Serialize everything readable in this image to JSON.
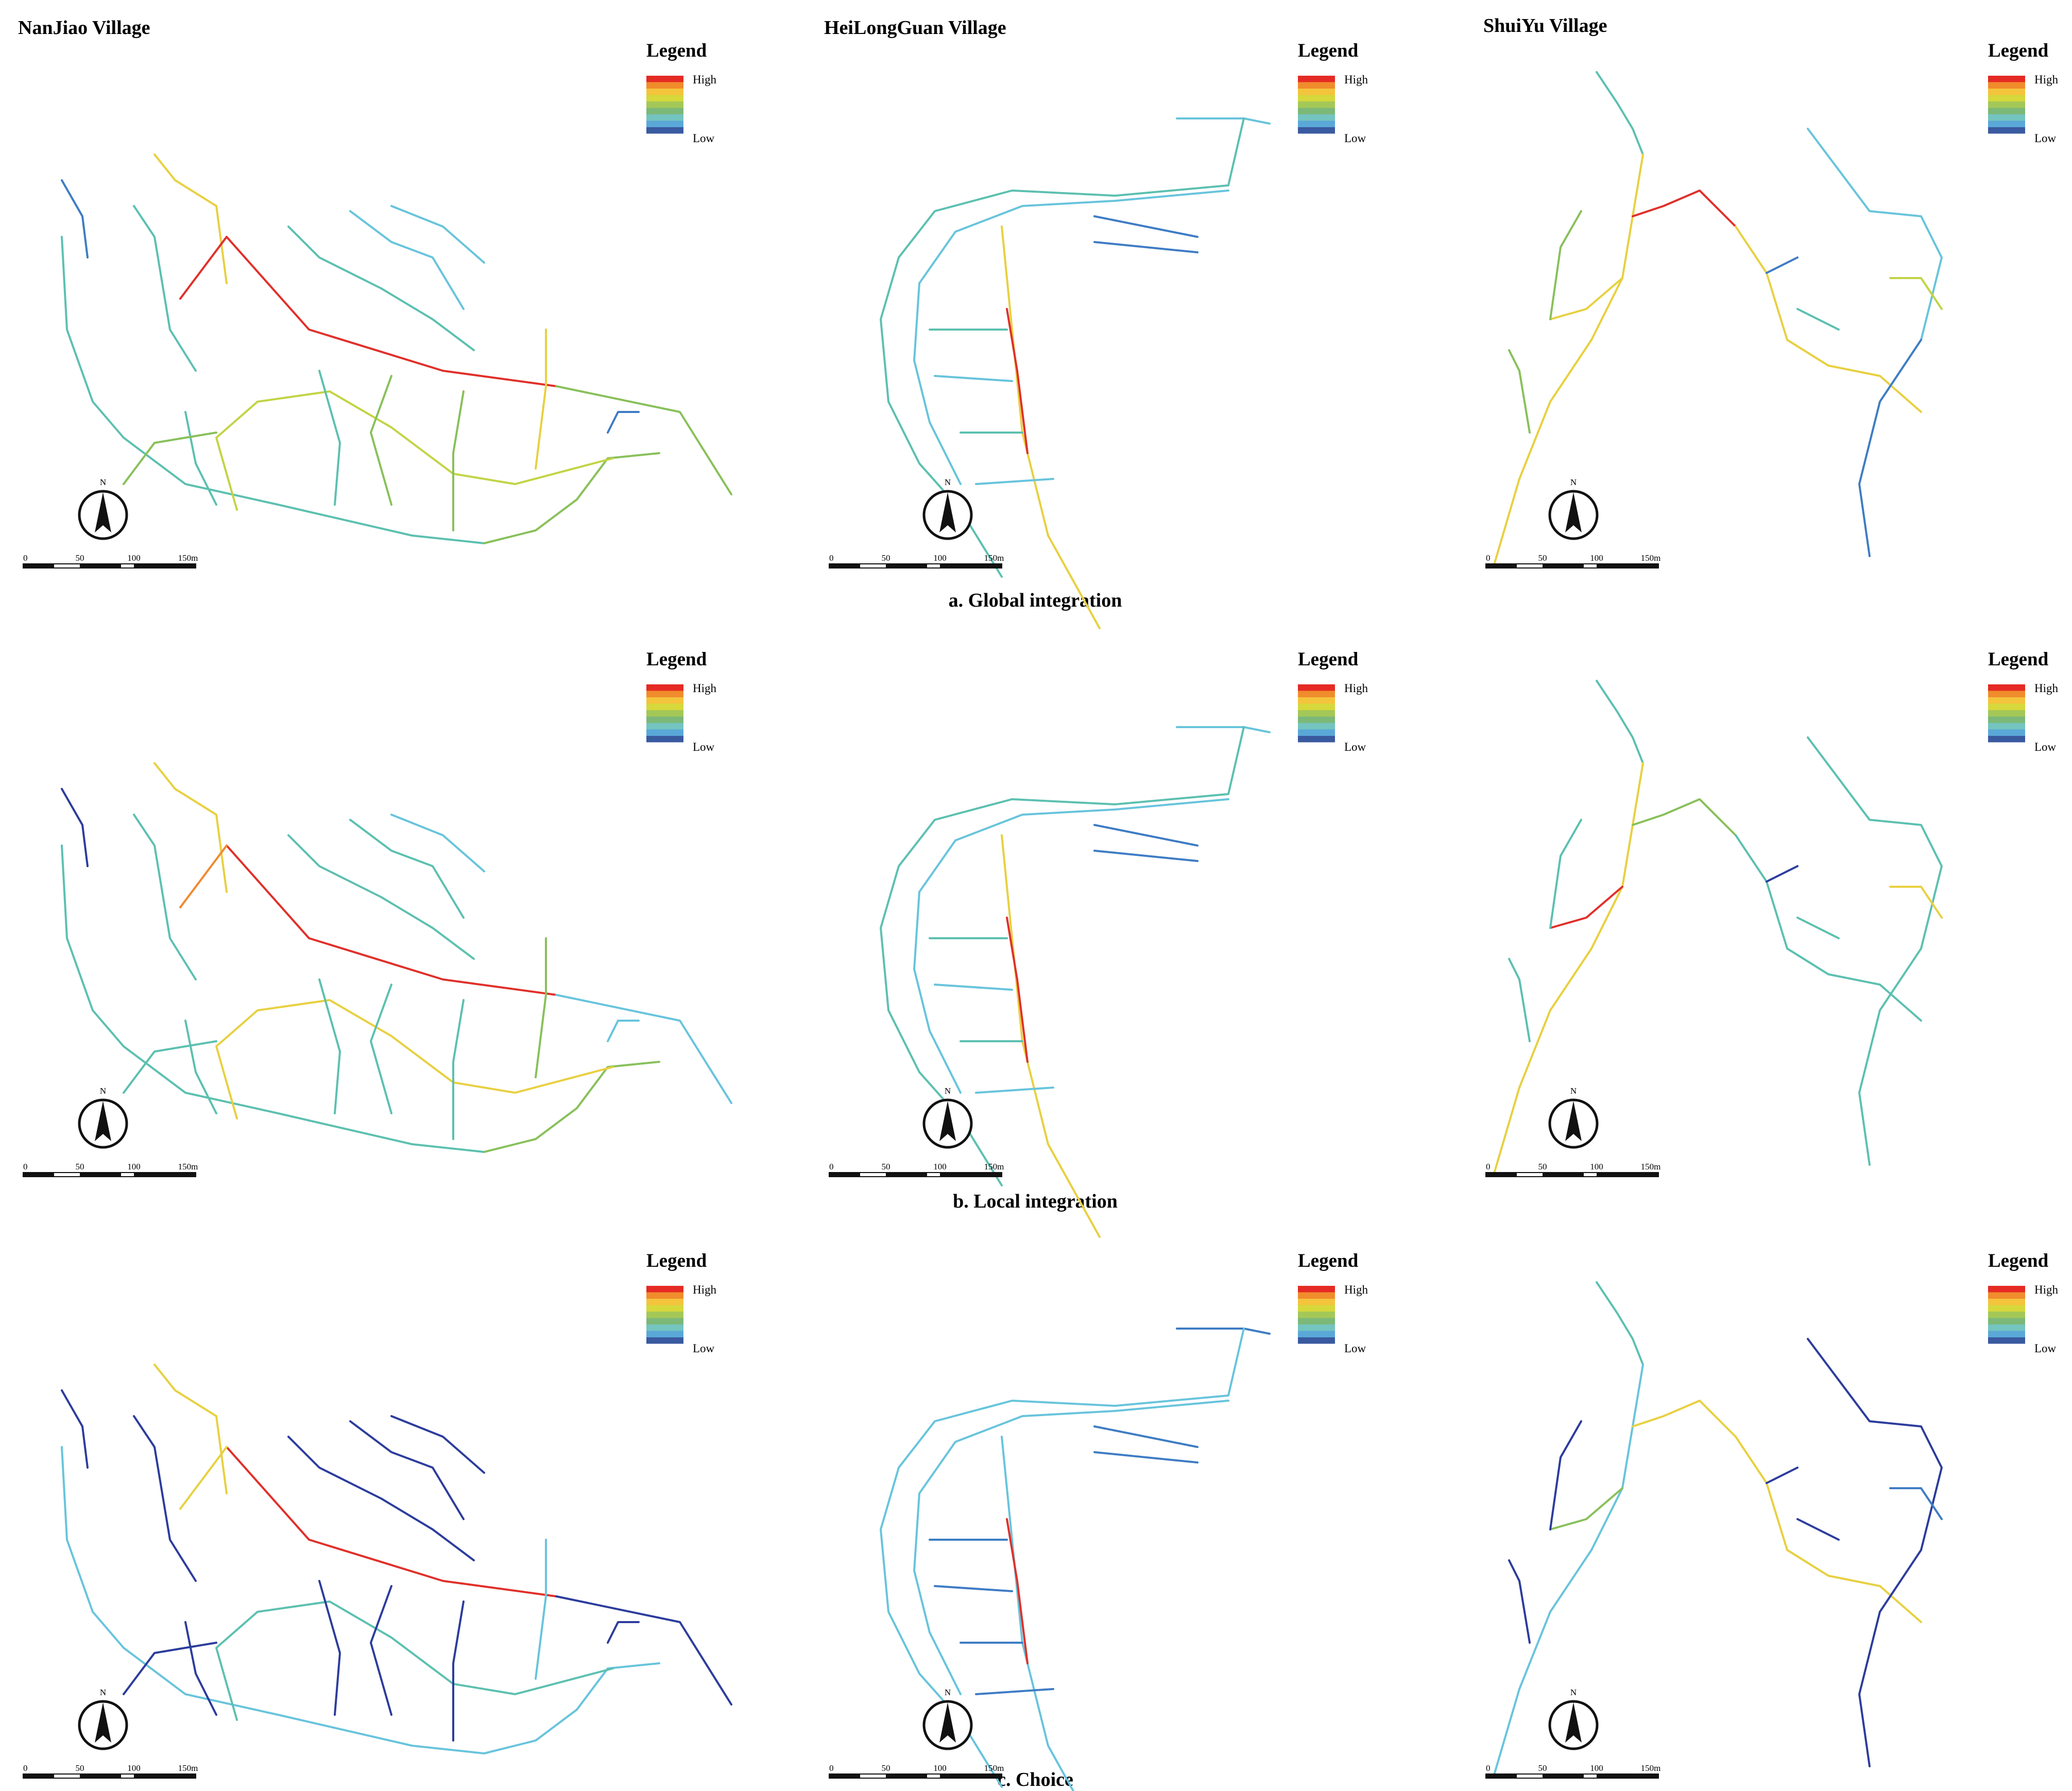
{
  "villages": [
    {
      "id": "nanjiao",
      "title": "NanJiao Village"
    },
    {
      "id": "heilongguan",
      "title": "HeiLongGuan Village"
    },
    {
      "id": "shuiyu",
      "title": "ShuiYu Village"
    }
  ],
  "rows": [
    {
      "id": "global",
      "caption": "a. Global integration"
    },
    {
      "id": "local",
      "caption": "b. Local integration"
    },
    {
      "id": "choice",
      "caption": "c. Choice"
    }
  ],
  "legend": {
    "title": "Legend",
    "high_label": "High",
    "low_label": "Low",
    "colors": [
      "#e52a24",
      "#f08c2c",
      "#f4c43c",
      "#d6d83c",
      "#a4c858",
      "#7cb878",
      "#74c4c0",
      "#5aa8d8",
      "#3a5aa0"
    ]
  },
  "north_arrow": {
    "label": "N"
  },
  "scale_bar": {
    "labels": [
      "0",
      "50",
      "100",
      "150m"
    ]
  },
  "map_colors": {
    "red": "#e0302a",
    "orange": "#ee8a30",
    "yellow": "#e8d040",
    "ygreen": "#c2d444",
    "green": "#88c05a",
    "teal": "#5cc0b0",
    "cyan": "#68c4dc",
    "blue": "#3e7cc4",
    "navy": "#2c3c9c"
  }
}
